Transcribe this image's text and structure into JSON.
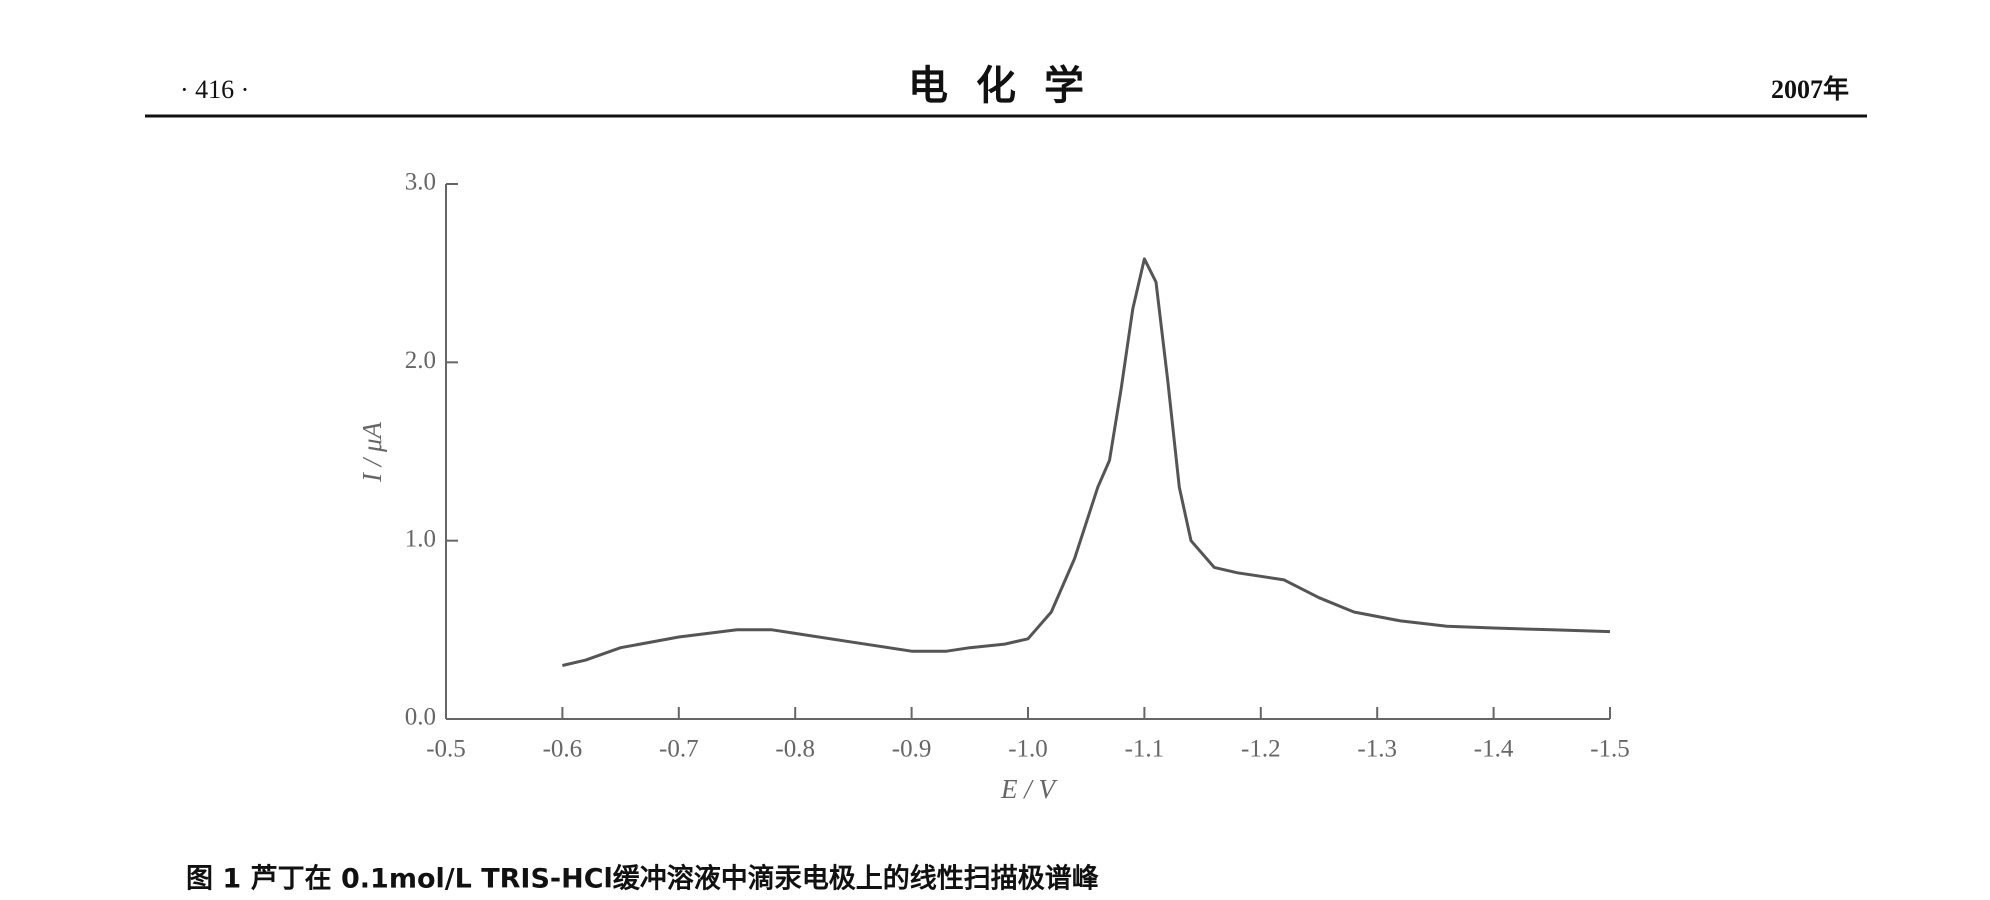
{
  "header": {
    "left": "· 416 ·",
    "center": "电化学",
    "right": "2007年"
  },
  "chart_data": {
    "type": "line",
    "xlabel": "E / V",
    "ylabel": "I / μA",
    "xlim": [
      -0.5,
      -1.5
    ],
    "xticks": [
      -0.5,
      -0.6,
      -0.7,
      -0.8,
      -0.9,
      {
        "value": -1.0,
        "label": "-1.0"
      },
      -1.1,
      -1.2,
      -1.3,
      -1.4,
      -1.5
    ],
    "ylim": [
      0,
      3
    ],
    "yticks": [
      {
        "value": 0,
        "label": "0.0"
      },
      {
        "value": 1,
        "label": "1.0"
      },
      {
        "value": 2,
        "label": "2.0"
      },
      {
        "value": 3,
        "label": "3.0"
      }
    ],
    "color": "#555555",
    "x": [
      -0.6,
      -0.62,
      -0.65,
      -0.7,
      -0.75,
      -0.78,
      -0.8,
      -0.85,
      -0.9,
      -0.93,
      -0.95,
      -0.98,
      -1.0,
      -1.02,
      -1.04,
      -1.06,
      -1.07,
      -1.08,
      -1.09,
      -1.1,
      -1.11,
      -1.12,
      -1.13,
      -1.14,
      -1.16,
      -1.18,
      -1.2,
      -1.22,
      -1.25,
      -1.28,
      -1.32,
      -1.36,
      -1.4,
      -1.45,
      -1.5
    ],
    "values": [
      0.3,
      0.33,
      0.4,
      0.46,
      0.5,
      0.5,
      0.48,
      0.43,
      0.38,
      0.38,
      0.4,
      0.42,
      0.45,
      0.6,
      0.9,
      1.3,
      1.45,
      1.85,
      2.3,
      2.58,
      2.45,
      1.9,
      1.3,
      1.0,
      0.85,
      0.82,
      0.8,
      0.78,
      0.68,
      0.6,
      0.55,
      0.52,
      0.51,
      0.5,
      0.49
    ]
  },
  "caption": "图 1  芦丁在 0.1mol/L TRIS-HCl缓冲溶液中滴汞电极上的线性扫描极谱峰"
}
